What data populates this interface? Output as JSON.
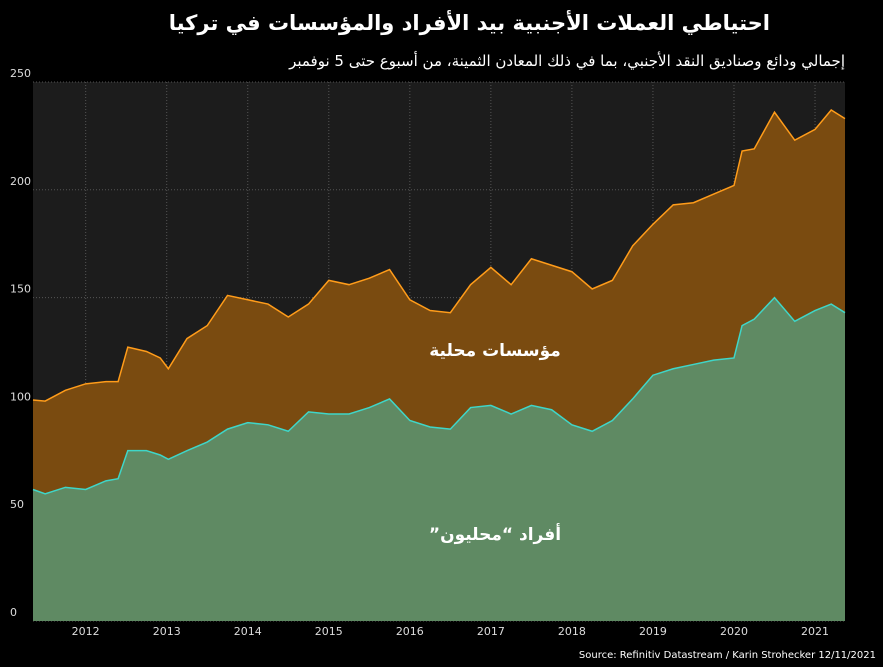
{
  "chart_data": {
    "type": "stacked_area",
    "title": "احتياطي العملات الأجنبية بيد الأفراد والمؤسسات في تركيا",
    "subtitle": "إجمالي ودائع وصناديق النقد الأجنبي، بما في ذلك المعادن الثمينة، من أسبوع حتى 5 نوفمبر",
    "source": "Source: Refinitiv Datastream / Karin Strohecker 12/11/2021",
    "x": [
      2011.85,
      2012.0,
      2012.25,
      2012.5,
      2012.75,
      2012.9,
      2013.02,
      2013.25,
      2013.42,
      2013.52,
      2013.75,
      2014.0,
      2014.25,
      2014.5,
      2014.75,
      2015.0,
      2015.25,
      2015.5,
      2015.75,
      2016.0,
      2016.25,
      2016.5,
      2016.75,
      2017.0,
      2017.25,
      2017.5,
      2017.75,
      2018.0,
      2018.25,
      2018.5,
      2018.75,
      2019.0,
      2019.25,
      2019.5,
      2019.75,
      2020.0,
      2020.25,
      2020.5,
      2020.6,
      2020.75,
      2021.0,
      2021.25,
      2021.5,
      2021.7,
      2021.87
    ],
    "series": [
      {
        "name": "أفراد “محليون”",
        "color": "#5f8a63",
        "line_color": "#3fd6c8",
        "values": [
          61,
          59,
          62,
          61,
          65,
          66,
          79,
          79,
          77,
          75,
          79,
          83,
          89,
          92,
          91,
          88,
          97,
          96,
          96,
          99,
          103,
          93,
          90,
          89,
          99,
          100,
          96,
          100,
          98,
          91,
          88,
          93,
          103,
          114,
          117,
          119,
          121,
          122,
          137,
          140,
          150,
          139,
          144,
          147,
          143
        ]
      },
      {
        "name": "مؤسسات محلية",
        "color": "#7a4b10",
        "line_color": "#ff9c1a",
        "values": [
          41.5,
          43,
          45,
          49,
          46,
          45,
          48,
          46,
          45,
          42,
          52,
          54,
          62,
          57,
          56,
          53,
          50,
          62,
          60,
          60,
          60,
          56,
          54,
          54,
          57,
          64,
          60,
          68,
          67,
          71,
          66,
          65,
          71,
          70,
          76,
          75,
          77,
          80,
          81,
          79,
          86,
          84,
          84,
          90,
          90
        ]
      }
    ],
    "xlim": [
      2011.85,
      2021.87
    ],
    "xticks": [
      {
        "value": 2012.5,
        "label": "2012"
      },
      {
        "value": 2013.5,
        "label": "2013"
      },
      {
        "value": 2014.5,
        "label": "2014"
      },
      {
        "value": 2015.5,
        "label": "2015"
      },
      {
        "value": 2016.5,
        "label": "2016"
      },
      {
        "value": 2017.5,
        "label": "2017"
      },
      {
        "value": 2018.5,
        "label": "2018"
      },
      {
        "value": 2019.5,
        "label": "2019"
      },
      {
        "value": 2020.5,
        "label": "2020"
      },
      {
        "value": 2021.5,
        "label": "2021"
      }
    ],
    "ylim": [
      0,
      250
    ],
    "yticks": [
      0,
      50,
      100,
      150,
      200,
      250
    ],
    "grid": true
  }
}
